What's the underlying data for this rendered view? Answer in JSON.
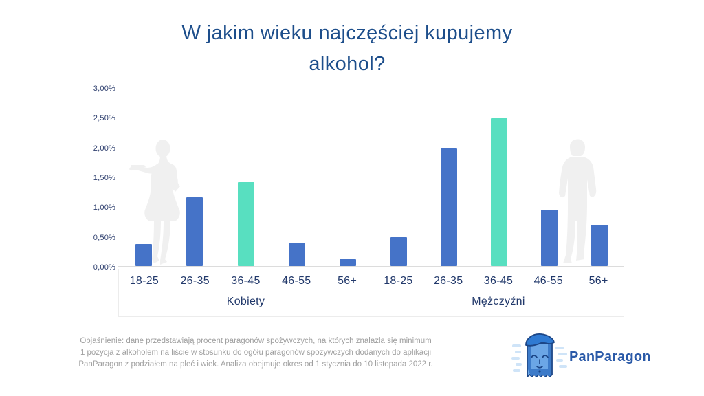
{
  "title": {
    "line1": "W jakim wieku najczęściej kupujemy",
    "line2": "alkohol?"
  },
  "chart_data": {
    "type": "bar",
    "categories": [
      "18-25",
      "26-35",
      "36-45",
      "46-55",
      "56+"
    ],
    "series": [
      {
        "name": "Kobiety",
        "values": [
          0.37,
          1.16,
          1.41,
          0.39,
          0.12
        ]
      },
      {
        "name": "Mężczyźni",
        "values": [
          0.48,
          1.97,
          2.48,
          0.95,
          0.69
        ]
      }
    ],
    "unit": "%",
    "yticks": [
      "3,00%",
      "2,50%",
      "2,00%",
      "1,50%",
      "1,00%",
      "0,50%",
      "0,00%"
    ],
    "ylim": [
      0,
      3
    ],
    "grid": false,
    "legend": "none",
    "highlight_category": "36-45",
    "bar_color": "#4573c8",
    "highlight_color": "#58dfc0"
  },
  "colors": {
    "title_navy": "#1d4e8b",
    "axis_label": "#22396b",
    "silhouette_gray": "#f0f0f0",
    "footnote_gray": "#a0a0a0",
    "logo_blue": "#2b5aa8"
  },
  "decorations": {
    "left_figure": "woman-silhouette-icon",
    "right_figure": "man-silhouette-icon"
  },
  "footer": {
    "note": "Objaśnienie: dane przedstawiają procent paragonów spożywczych, na których znalazła się minimum 1 pozycja z alkoholem na liście w stosunku do ogółu paragonów spożywczych dodanych do aplikacji PanParagon z podziałem na płeć i wiek. Analiza obejmuje okres od 1 stycznia do 10 listopada 2022 r."
  },
  "logo": {
    "icon": "panparagon-mascot-icon",
    "text": "PanParagon"
  }
}
